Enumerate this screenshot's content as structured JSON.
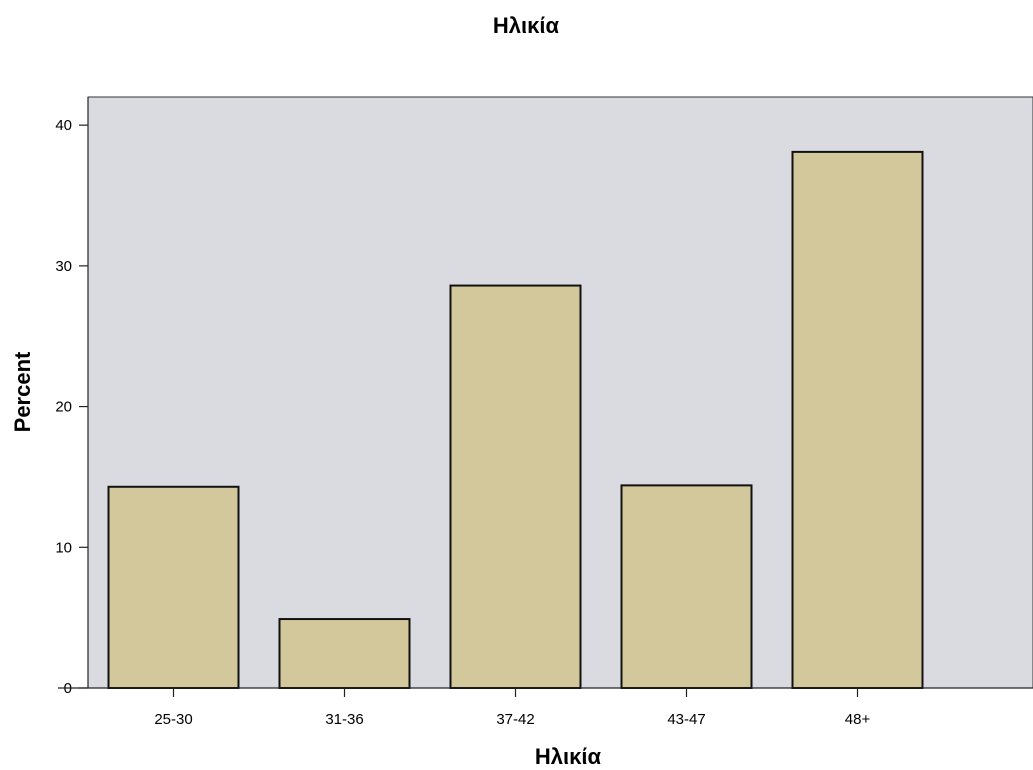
{
  "chart_data": {
    "type": "bar",
    "title": "Ηλικία",
    "xlabel": "Ηλικία",
    "ylabel": "Percent",
    "categories": [
      "25-30",
      "31-36",
      "37-42",
      "43-47",
      "48+"
    ],
    "values": [
      14.3,
      4.9,
      28.6,
      14.4,
      38.1
    ],
    "ylim": [
      0,
      42
    ],
    "yticks": [
      0,
      10,
      20,
      30,
      40
    ],
    "grid": false,
    "legend": "none",
    "colors": {
      "bar_fill": "#d3c89c",
      "bar_stroke": "#111111",
      "plot_background": "#dadbe1",
      "page_background": "#ffffff"
    }
  }
}
